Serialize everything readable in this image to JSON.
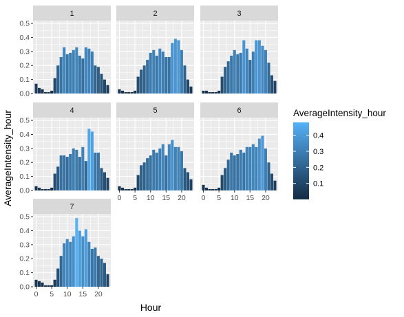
{
  "chart_data": {
    "type": "bar",
    "xlabel": "Hour",
    "ylabel": "AverageIntensity_hour",
    "ylim": [
      0,
      0.52
    ],
    "y_ticks": [
      0.0,
      0.1,
      0.2,
      0.3,
      0.4,
      0.5
    ],
    "y_tick_labels": [
      "0.0",
      "0.1",
      "0.2",
      "0.3",
      "0.4",
      "0.5"
    ],
    "x_ticks": [
      0,
      5,
      10,
      15,
      20
    ],
    "x_tick_labels": [
      "0",
      "5",
      "10",
      "15",
      "20"
    ],
    "grid": true,
    "legend": {
      "title": "AverageIntensity_hour",
      "placement": "right",
      "ticks": [
        0.1,
        0.2,
        0.3,
        0.4
      ],
      "tick_labels": [
        "0.1",
        "0.2",
        "0.3",
        "0.4"
      ],
      "range": [
        0.0,
        0.48
      ],
      "color_low": "#132b43",
      "color_high": "#56b1f7"
    },
    "colors": {
      "panel_bg": "#ebebeb",
      "strip_bg": "#d9d9d9",
      "grid": "#ffffff"
    },
    "facets": [
      {
        "label": "1",
        "values": [
          0.07,
          0.04,
          0.03,
          0.01,
          0.01,
          0.02,
          0.11,
          0.2,
          0.26,
          0.33,
          0.28,
          0.29,
          0.31,
          0.33,
          0.27,
          0.25,
          0.33,
          0.32,
          0.3,
          0.2,
          0.19,
          0.14,
          0.1,
          0.06
        ]
      },
      {
        "label": "2",
        "values": [
          0.03,
          0.02,
          0.01,
          0.01,
          0.01,
          0.02,
          0.12,
          0.17,
          0.2,
          0.24,
          0.29,
          0.31,
          0.27,
          0.32,
          0.3,
          0.26,
          0.26,
          0.36,
          0.39,
          0.38,
          0.31,
          0.2,
          0.1,
          0.05
        ]
      },
      {
        "label": "3",
        "values": [
          0.02,
          0.02,
          0.01,
          0.01,
          0.01,
          0.02,
          0.12,
          0.19,
          0.23,
          0.27,
          0.31,
          0.28,
          0.29,
          0.38,
          0.32,
          0.24,
          0.3,
          0.38,
          0.38,
          0.34,
          0.31,
          0.22,
          0.13,
          0.09
        ]
      },
      {
        "label": "4",
        "values": [
          0.03,
          0.02,
          0.01,
          0.01,
          0.01,
          0.02,
          0.12,
          0.17,
          0.25,
          0.25,
          0.24,
          0.26,
          0.3,
          0.29,
          0.24,
          0.31,
          0.21,
          0.44,
          0.42,
          0.27,
          0.27,
          0.16,
          0.13,
          0.09
        ]
      },
      {
        "label": "5",
        "values": [
          0.03,
          0.02,
          0.01,
          0.01,
          0.01,
          0.02,
          0.11,
          0.18,
          0.2,
          0.23,
          0.25,
          0.29,
          0.27,
          0.3,
          0.33,
          0.25,
          0.33,
          0.36,
          0.31,
          0.31,
          0.28,
          0.16,
          0.13,
          0.08
        ]
      },
      {
        "label": "6",
        "values": [
          0.04,
          0.02,
          0.01,
          0.01,
          0.01,
          0.02,
          0.11,
          0.16,
          0.22,
          0.27,
          0.25,
          0.26,
          0.29,
          0.27,
          0.31,
          0.31,
          0.33,
          0.31,
          0.37,
          0.39,
          0.3,
          0.2,
          0.12,
          0.07
        ]
      },
      {
        "label": "7",
        "values": [
          0.05,
          0.04,
          0.03,
          0.01,
          0.01,
          0.01,
          0.05,
          0.13,
          0.22,
          0.31,
          0.34,
          0.32,
          0.36,
          0.49,
          0.4,
          0.36,
          0.41,
          0.32,
          0.27,
          0.28,
          0.22,
          0.2,
          0.17,
          0.09
        ]
      }
    ]
  }
}
